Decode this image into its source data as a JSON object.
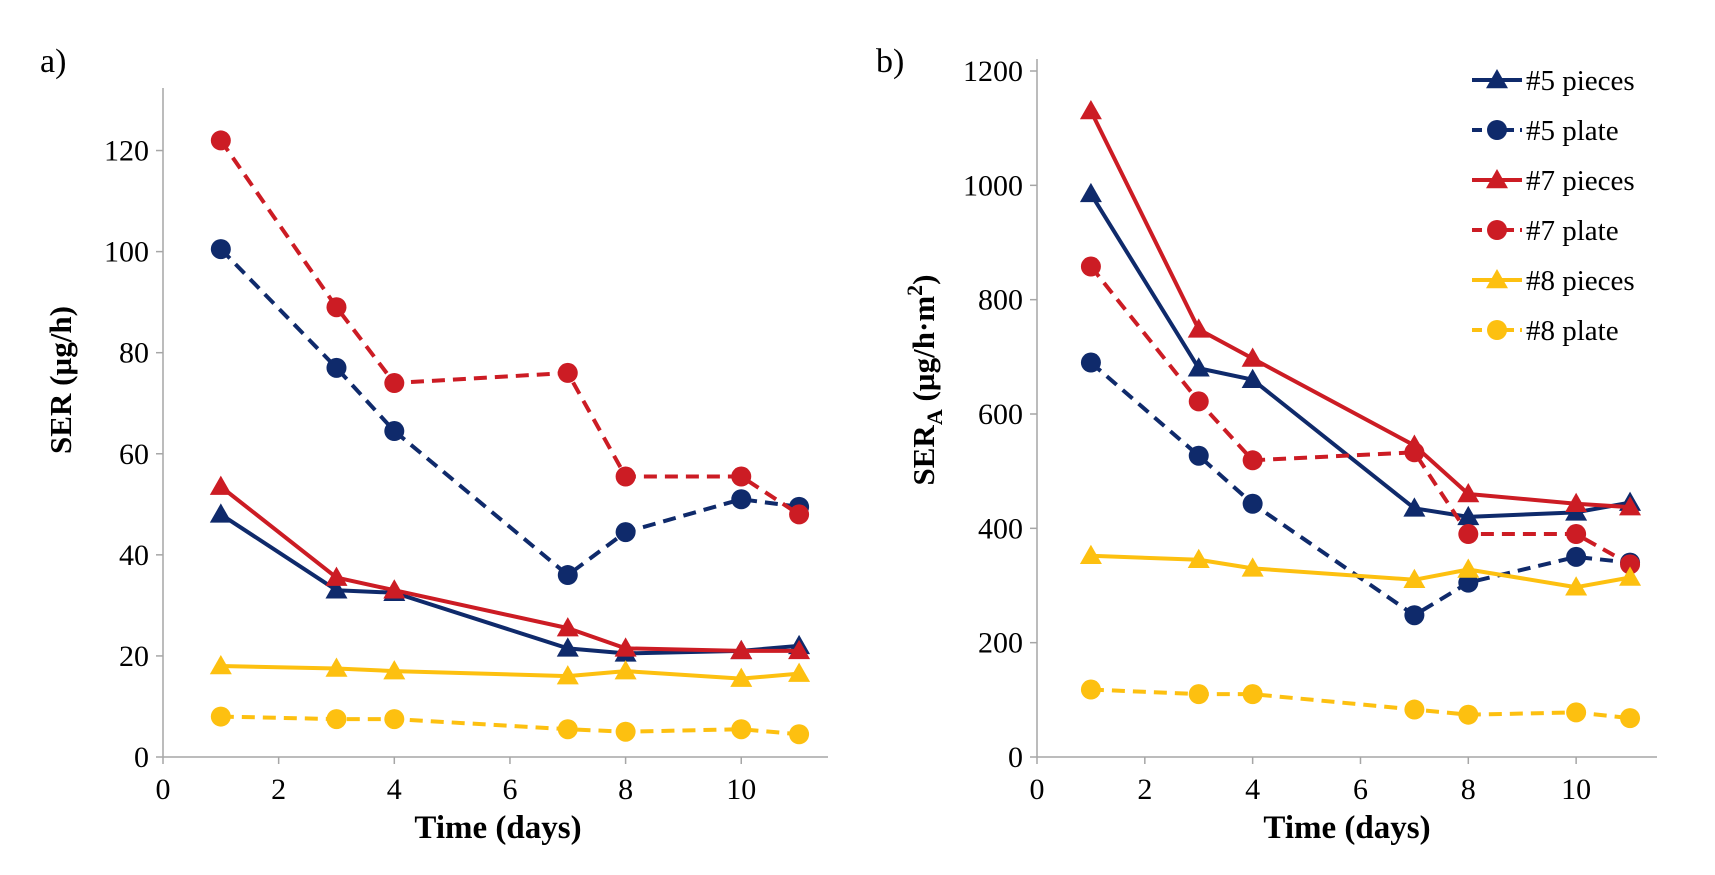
{
  "colors": {
    "navy": "#0f2a6b",
    "red": "#cc1c24",
    "gold": "#fdc010",
    "axis": "#a6a6a6"
  },
  "legend": [
    {
      "label": "#5 pieces",
      "color": "navy",
      "marker": "triangle",
      "dash": false
    },
    {
      "label": "#5 plate",
      "color": "navy",
      "marker": "circle",
      "dash": true
    },
    {
      "label": "#7 pieces",
      "color": "red",
      "marker": "triangle",
      "dash": false
    },
    {
      "label": "#7 plate",
      "color": "red",
      "marker": "circle",
      "dash": true
    },
    {
      "label": "#8 pieces",
      "color": "gold",
      "marker": "triangle",
      "dash": false
    },
    {
      "label": "#8 plate",
      "color": "gold",
      "marker": "circle",
      "dash": true
    }
  ],
  "chart_data": [
    {
      "type": "line",
      "panel_label": "a)",
      "xlabel": "Time (days)",
      "ylabel": "SER (µg/h)",
      "xlim": [
        0,
        11.5
      ],
      "ylim": [
        0,
        130
      ],
      "xticks": [
        0,
        2,
        4,
        6,
        8,
        10
      ],
      "yticks": [
        0,
        20,
        40,
        60,
        80,
        100,
        120
      ],
      "x": [
        1,
        3,
        4,
        7,
        8,
        10,
        11
      ],
      "series": [
        {
          "name": "#5 pieces",
          "values": [
            48,
            33,
            32.5,
            21.5,
            20.5,
            21,
            22
          ]
        },
        {
          "name": "#5 plate",
          "values": [
            100.5,
            77,
            64.5,
            36,
            44.5,
            51,
            49.5
          ]
        },
        {
          "name": "#7 pieces",
          "values": [
            53.5,
            35.5,
            33,
            25.5,
            21.5,
            21,
            21
          ]
        },
        {
          "name": "#7 plate",
          "values": [
            122,
            89,
            74,
            76,
            55.5,
            55.5,
            48
          ]
        },
        {
          "name": "#8 pieces",
          "values": [
            18,
            17.5,
            17,
            16,
            17,
            15.5,
            16.5
          ]
        },
        {
          "name": "#8 plate",
          "values": [
            8,
            7.5,
            7.5,
            5.5,
            5,
            5.5,
            4.5
          ]
        }
      ]
    },
    {
      "type": "line",
      "panel_label": "b)",
      "xlabel": "Time (days)",
      "ylabel_main": "SER",
      "ylabel_sub": "A",
      "ylabel_unit": " (µg/h·m",
      "ylabel_sup": "2",
      "ylabel_end": ")",
      "xlim": [
        0,
        11.5
      ],
      "ylim": [
        0,
        1200
      ],
      "xticks": [
        0,
        2,
        4,
        6,
        8,
        10
      ],
      "yticks": [
        0,
        200,
        400,
        600,
        800,
        1000,
        1200
      ],
      "x": [
        1,
        3,
        4,
        7,
        8,
        10,
        11
      ],
      "series": [
        {
          "name": "#5 pieces",
          "values": [
            985,
            680,
            660,
            435,
            420,
            428,
            445
          ]
        },
        {
          "name": "#5 plate",
          "values": [
            690,
            527,
            443,
            248,
            305,
            350,
            340
          ]
        },
        {
          "name": "#7 pieces",
          "values": [
            1130,
            748,
            697,
            545,
            460,
            443,
            437
          ]
        },
        {
          "name": "#7 plate",
          "values": [
            858,
            622,
            519,
            533,
            390,
            390,
            337
          ]
        },
        {
          "name": "#8 pieces",
          "values": [
            352,
            345,
            330,
            310,
            328,
            297,
            314
          ]
        },
        {
          "name": "#8 plate",
          "values": [
            118,
            110,
            110,
            83,
            74,
            78,
            68
          ]
        }
      ]
    }
  ]
}
